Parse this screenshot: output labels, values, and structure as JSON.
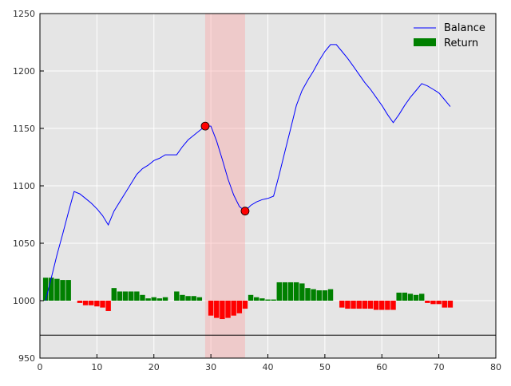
{
  "chart_data": {
    "type": "line",
    "title": "",
    "xlabel": "",
    "ylabel": "",
    "xlim": [
      0,
      80
    ],
    "ylim": [
      950,
      1250
    ],
    "xticks": [
      0,
      10,
      20,
      30,
      40,
      50,
      60,
      70,
      80
    ],
    "yticks": [
      950,
      1000,
      1050,
      1100,
      1150,
      1200,
      1250
    ],
    "grid": true,
    "legend_position": "top-right",
    "colors": {
      "plot_bg": "#e5e5e5",
      "grid": "#ffffff",
      "balance_line": "#0000ff",
      "positive_bar": "#008000",
      "negative_bar": "#ff0000",
      "shade": "#ff9999",
      "marker": "#ff0000",
      "baseline": "#000000"
    },
    "baseline_y": 970,
    "bar_base": 1000,
    "shaded_region": {
      "x_start": 29,
      "x_end": 36
    },
    "markers": [
      {
        "x": 29,
        "y": 1152
      },
      {
        "x": 36,
        "y": 1078
      }
    ],
    "series": [
      {
        "name": "Balance",
        "kind": "line",
        "x": [
          1,
          2,
          3,
          4,
          5,
          6,
          7,
          8,
          9,
          10,
          11,
          12,
          13,
          14,
          15,
          16,
          17,
          18,
          19,
          20,
          21,
          22,
          23,
          24,
          25,
          26,
          27,
          28,
          29,
          30,
          31,
          32,
          33,
          34,
          35,
          36,
          37,
          38,
          39,
          40,
          41,
          42,
          43,
          44,
          45,
          46,
          47,
          48,
          49,
          50,
          51,
          52,
          53,
          54,
          55,
          56,
          57,
          58,
          59,
          60,
          61,
          62,
          63,
          64,
          65,
          66,
          67,
          68,
          69,
          70,
          71,
          72
        ],
        "values": [
          1000,
          1020,
          1040,
          1058,
          1077,
          1095,
          1093,
          1089,
          1085,
          1080,
          1074,
          1066,
          1078,
          1086,
          1094,
          1102,
          1110,
          1115,
          1118,
          1122,
          1124,
          1127,
          1127,
          1127,
          1134,
          1140,
          1144,
          1148,
          1152,
          1152,
          1139,
          1123,
          1106,
          1092,
          1082,
          1078,
          1083,
          1086,
          1088,
          1089,
          1091,
          1110,
          1130,
          1150,
          1170,
          1183,
          1192,
          1200,
          1209,
          1217,
          1223,
          1223,
          1217,
          1211,
          1204,
          1197,
          1190,
          1184,
          1177,
          1170,
          1162,
          1155,
          1162,
          1170,
          1177,
          1183,
          1189,
          1187,
          1184,
          1181,
          1175,
          1169
        ]
      },
      {
        "name": "Return",
        "kind": "bar",
        "x": [
          1,
          2,
          3,
          4,
          5,
          6,
          7,
          8,
          9,
          10,
          11,
          12,
          13,
          14,
          15,
          16,
          17,
          18,
          19,
          20,
          21,
          22,
          23,
          24,
          25,
          26,
          27,
          28,
          29,
          30,
          31,
          32,
          33,
          34,
          35,
          36,
          37,
          38,
          39,
          40,
          41,
          42,
          43,
          44,
          45,
          46,
          47,
          48,
          49,
          50,
          51,
          52,
          53,
          54,
          55,
          56,
          57,
          58,
          59,
          60,
          61,
          62,
          63,
          64,
          65,
          66,
          67,
          68,
          69,
          70,
          71,
          72
        ],
        "values": [
          20,
          20,
          19,
          18,
          18,
          0,
          -2,
          -4,
          -4,
          -5,
          -6,
          -9,
          11,
          8,
          8,
          8,
          8,
          5,
          2,
          3,
          2,
          3,
          0,
          8,
          5,
          4,
          4,
          3,
          0,
          -13,
          -15,
          -16,
          -15,
          -13,
          -11,
          -7,
          5,
          3,
          2,
          1,
          1,
          16,
          16,
          16,
          16,
          15,
          11,
          10,
          9,
          9,
          10,
          0,
          -6,
          -7,
          -7,
          -7,
          -7,
          -7,
          -8,
          -8,
          -8,
          -8,
          7,
          7,
          6,
          5,
          6,
          -2,
          -3,
          -3,
          -6,
          -6
        ]
      }
    ]
  }
}
